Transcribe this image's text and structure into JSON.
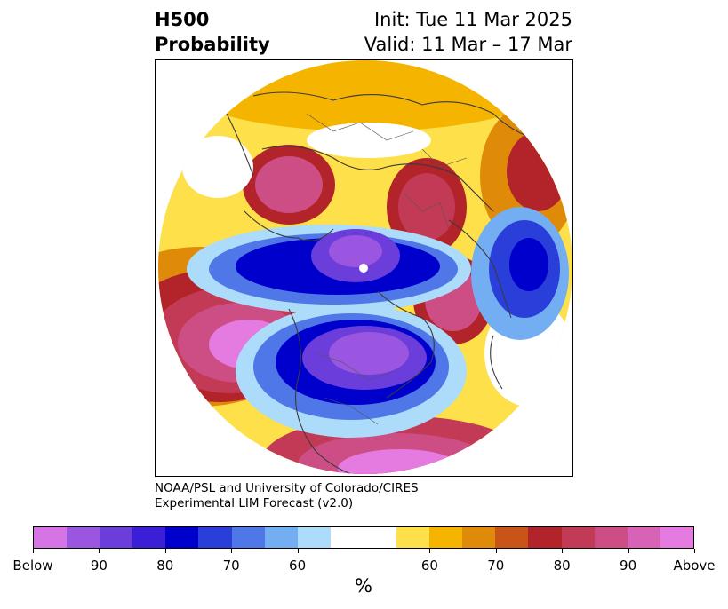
{
  "title": {
    "left_line1": "H500",
    "left_line2": "Probability",
    "right_line1": "Init: Tue 11 Mar 2025",
    "right_line2": "Valid: 11 Mar – 17 Mar"
  },
  "credit": {
    "line1": "NOAA/PSL and University of Colorado/CIRES",
    "line2": "Experimental LIM Forecast (v2.0)"
  },
  "colorbar": {
    "colors": [
      "#d674e6",
      "#9a56e0",
      "#6b3ddb",
      "#3a1fd6",
      "#0000cc",
      "#2a3ed9",
      "#4f77e8",
      "#74aef2",
      "#acdcfa",
      "#ffffff",
      "#ffffff",
      "#fde04a",
      "#f5b400",
      "#e08a0a",
      "#c85418",
      "#b2242a",
      "#c23a55",
      "#cc4e84",
      "#d862b6",
      "#e57ae0"
    ],
    "labels": [
      "Below",
      "90",
      "80",
      "70",
      "60",
      "60",
      "70",
      "80",
      "90",
      "Above"
    ],
    "unit": "%"
  }
}
